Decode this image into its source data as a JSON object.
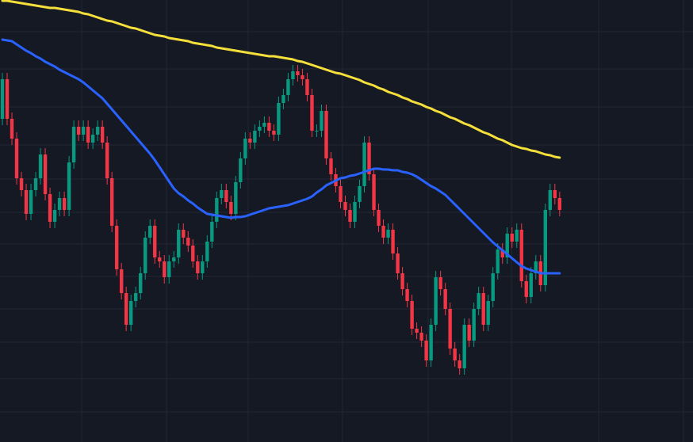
{
  "chart_data": {
    "type": "candlestick",
    "background": "#151924",
    "up_color": "#089981",
    "down_color": "#f23645",
    "grid": true,
    "grid_color": "#232734",
    "xlim": [
      -0.5,
      145
    ],
    "ylim": [
      0,
      558
    ],
    "xticks": [
      16.65,
      34.46,
      51.6,
      71.4,
      89.4,
      106.9,
      125.2,
      143.0
    ],
    "yticks": [
      518,
      471,
      423,
      375,
      332,
      290,
      250,
      209,
      168,
      126,
      80,
      38
    ],
    "open": [
      408,
      458,
      408,
      383,
      333,
      318,
      288,
      318,
      333,
      363,
      313,
      278,
      293,
      308,
      293,
      353,
      398,
      388,
      398,
      378,
      388,
      398,
      378,
      333,
      273,
      218,
      188,
      148,
      178,
      188,
      213,
      258,
      273,
      233,
      228,
      208,
      228,
      233,
      268,
      258,
      248,
      228,
      213,
      228,
      253,
      278,
      308,
      318,
      303,
      288,
      328,
      358,
      383,
      378,
      393,
      398,
      403,
      393,
      388,
      428,
      438,
      458,
      468,
      463,
      458,
      438,
      393,
      393,
      418,
      358,
      338,
      323,
      303,
      293,
      278,
      303,
      323,
      378,
      338,
      293,
      273,
      258,
      268,
      238,
      213,
      193,
      178,
      143,
      138,
      128,
      103,
      148,
      208,
      193,
      168,
      118,
      103,
      93,
      148,
      128,
      168,
      188,
      148,
      178,
      213,
      243,
      233,
      263,
      253,
      268,
      203,
      183,
      213,
      228,
      198,
      293,
      318,
      308
    ],
    "high": [
      466,
      466,
      416,
      391,
      341,
      326,
      326,
      341,
      371,
      371,
      321,
      301,
      316,
      316,
      361,
      406,
      406,
      406,
      406,
      396,
      406,
      406,
      386,
      341,
      281,
      226,
      196,
      186,
      196,
      221,
      266,
      281,
      281,
      241,
      236,
      236,
      241,
      276,
      276,
      266,
      256,
      236,
      236,
      261,
      286,
      316,
      326,
      326,
      311,
      336,
      366,
      391,
      391,
      401,
      406,
      411,
      411,
      401,
      436,
      446,
      466,
      476,
      476,
      471,
      466,
      446,
      401,
      426,
      426,
      366,
      346,
      331,
      311,
      301,
      311,
      331,
      386,
      386,
      346,
      301,
      281,
      276,
      276,
      246,
      221,
      201,
      186,
      151,
      146,
      136,
      156,
      216,
      216,
      201,
      176,
      126,
      111,
      156,
      156,
      176,
      196,
      196,
      186,
      221,
      251,
      251,
      271,
      271,
      276,
      276,
      211,
      221,
      236,
      236,
      301,
      326,
      326,
      316
    ],
    "low": [
      400,
      400,
      375,
      325,
      310,
      280,
      280,
      310,
      325,
      305,
      270,
      270,
      285,
      285,
      285,
      345,
      380,
      380,
      370,
      370,
      380,
      370,
      325,
      265,
      210,
      180,
      140,
      140,
      170,
      180,
      205,
      250,
      225,
      220,
      200,
      200,
      220,
      225,
      250,
      240,
      220,
      205,
      205,
      220,
      245,
      270,
      300,
      295,
      280,
      280,
      320,
      350,
      370,
      370,
      385,
      390,
      385,
      380,
      380,
      420,
      430,
      450,
      455,
      450,
      430,
      385,
      385,
      385,
      350,
      330,
      315,
      295,
      285,
      270,
      270,
      295,
      315,
      330,
      285,
      265,
      250,
      250,
      230,
      205,
      185,
      170,
      135,
      130,
      120,
      95,
      95,
      140,
      185,
      160,
      110,
      95,
      85,
      85,
      120,
      120,
      160,
      140,
      140,
      170,
      205,
      225,
      225,
      245,
      245,
      195,
      175,
      175,
      205,
      190,
      190,
      285,
      300,
      285
    ],
    "close": [
      458,
      408,
      383,
      333,
      318,
      288,
      318,
      333,
      363,
      313,
      278,
      293,
      308,
      293,
      353,
      398,
      388,
      398,
      378,
      388,
      398,
      378,
      333,
      273,
      218,
      188,
      148,
      178,
      188,
      213,
      258,
      273,
      233,
      228,
      208,
      228,
      233,
      268,
      258,
      248,
      228,
      213,
      228,
      253,
      278,
      308,
      318,
      303,
      288,
      328,
      358,
      383,
      378,
      393,
      398,
      403,
      393,
      388,
      428,
      438,
      458,
      468,
      463,
      458,
      438,
      393,
      393,
      418,
      358,
      338,
      323,
      303,
      293,
      278,
      303,
      323,
      378,
      338,
      293,
      273,
      258,
      268,
      238,
      213,
      193,
      178,
      143,
      138,
      128,
      103,
      148,
      208,
      193,
      168,
      118,
      103,
      93,
      148,
      128,
      168,
      188,
      148,
      178,
      213,
      243,
      233,
      263,
      253,
      268,
      203,
      183,
      213,
      228,
      198,
      293,
      318,
      308,
      293
    ],
    "series": [
      {
        "color": "#f5df3b",
        "values": [
          557,
          557,
          556,
          555,
          554,
          553,
          552,
          551,
          550,
          549,
          548,
          548,
          547,
          546,
          545,
          544,
          543,
          541,
          540,
          538,
          536,
          534,
          532,
          531,
          529,
          527,
          525,
          523,
          522,
          520,
          518,
          516,
          514,
          513,
          512,
          510,
          509,
          508,
          507,
          506,
          504,
          503,
          502,
          501,
          500,
          498,
          497,
          496,
          495,
          494,
          493,
          492,
          491,
          490,
          489,
          488,
          487,
          487,
          486,
          485,
          484,
          483,
          481,
          480,
          478,
          476,
          474,
          472,
          470,
          468,
          466,
          465,
          463,
          461,
          459,
          457,
          454,
          452,
          450,
          447,
          445,
          442,
          440,
          438,
          435,
          433,
          430,
          428,
          426,
          423,
          421,
          418,
          416,
          413,
          410,
          408,
          405,
          402,
          400,
          397,
          394,
          391,
          389,
          386,
          383,
          381,
          378,
          375,
          373,
          371,
          370,
          368,
          367,
          365,
          363,
          362,
          360,
          359
        ]
      },
      {
        "color": "#2962ff",
        "values": [
          508,
          507,
          506,
          502,
          498,
          494,
          491,
          487,
          484,
          480,
          477,
          474,
          470,
          467,
          464,
          461,
          458,
          454,
          449,
          444,
          439,
          434,
          427,
          420,
          413,
          406,
          399,
          392,
          385,
          378,
          371,
          364,
          356,
          347,
          338,
          329,
          320,
          314,
          310,
          305,
          301,
          296,
          292,
          288,
          287,
          286,
          285,
          284,
          283,
          284,
          284,
          285,
          287,
          289,
          291,
          293,
          295,
          296,
          297,
          298,
          299,
          301,
          303,
          305,
          307,
          310,
          315,
          319,
          324,
          327,
          330,
          333,
          334,
          336,
          337,
          339,
          341,
          343,
          345,
          345,
          344,
          344,
          343,
          343,
          341,
          340,
          338,
          335,
          331,
          327,
          323,
          320,
          316,
          312,
          306,
          300,
          294,
          288,
          282,
          276,
          270,
          264,
          258,
          252,
          247,
          242,
          237,
          232,
          227,
          222,
          219,
          217,
          215,
          213,
          213,
          213,
          213,
          213
        ]
      }
    ]
  }
}
